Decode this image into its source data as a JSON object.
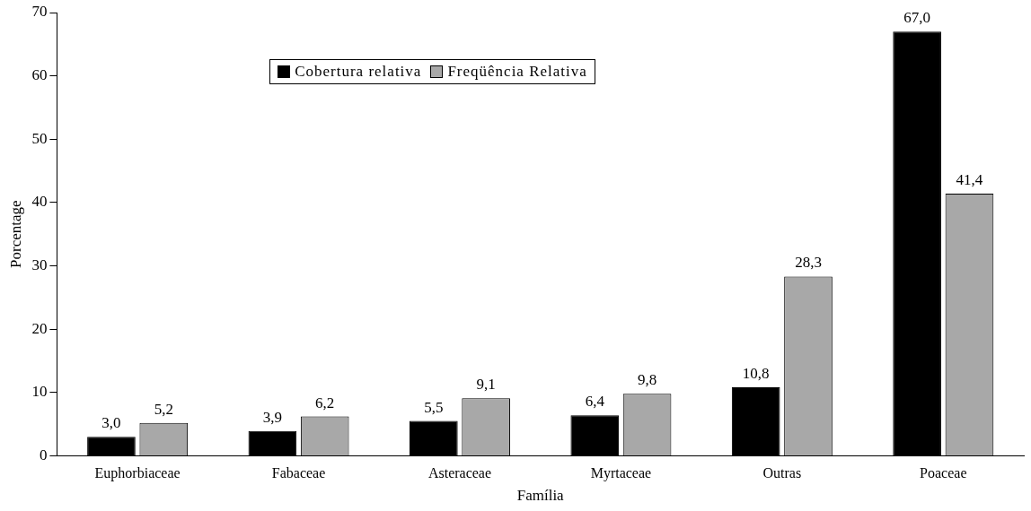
{
  "chart_data": {
    "type": "bar",
    "xlabel": "Família",
    "ylabel": "Porcentage",
    "categories": [
      "Euphorbiaceae",
      "Fabaceae",
      "Asteraceae",
      "Myrtaceae",
      "Outras",
      "Poaceae"
    ],
    "series": [
      {
        "name": "Cobertura relativa",
        "color": "#000000",
        "values": [
          3.0,
          3.9,
          5.5,
          6.4,
          10.8,
          67.0
        ],
        "value_labels": [
          "3,0",
          "3,9",
          "5,5",
          "6,4",
          "10,8",
          "67,0"
        ]
      },
      {
        "name": "Freqüência Relativa",
        "color": "#a8a8a8",
        "values": [
          5.2,
          6.2,
          9.1,
          9.8,
          28.3,
          41.4
        ],
        "value_labels": [
          "5,2",
          "6,2",
          "9,1",
          "9,8",
          "28,3",
          "41,4"
        ]
      }
    ],
    "ylim": [
      0,
      70
    ],
    "yticks": [
      0,
      10,
      20,
      30,
      40,
      50,
      60,
      70
    ],
    "grid": false,
    "legend": "top"
  }
}
